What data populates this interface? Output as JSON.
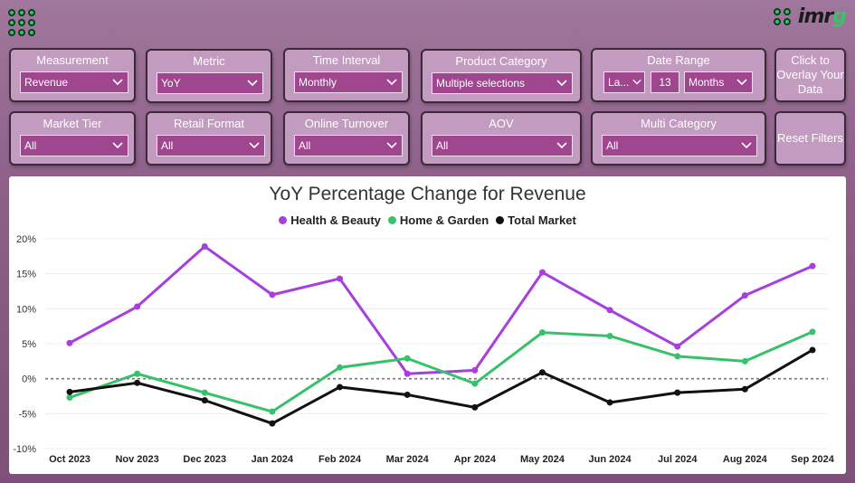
{
  "filters_row1": {
    "measurement": {
      "title": "Measurement",
      "value": "Revenue"
    },
    "metric": {
      "title": "Metric",
      "value": "YoY"
    },
    "time_interval": {
      "title": "Time Interval",
      "value": "Monthly"
    },
    "product_category": {
      "title": "Product Category",
      "value": "Multiple selections"
    },
    "date_range": {
      "title": "Date Range",
      "mode": "La...",
      "count": "13",
      "unit": "Months"
    },
    "overlay_button": {
      "label": "Click to Overlay Your Data"
    }
  },
  "filters_row2": {
    "market_tier": {
      "title": "Market Tier",
      "value": "All"
    },
    "retail_format": {
      "title": "Retail Format",
      "value": "All"
    },
    "online_turnover": {
      "title": "Online Turnover",
      "value": "All"
    },
    "aov": {
      "title": "AOV",
      "value": "All"
    },
    "multi_category": {
      "title": "Multi Category",
      "value": "All"
    },
    "reset_button": {
      "label": "Reset Filters"
    }
  },
  "colors": {
    "accent": "#a0468f",
    "health_beauty": "#a63fdd",
    "home_garden": "#36c26a",
    "total_market": "#111111"
  },
  "chart_data": {
    "type": "line",
    "title": "YoY Percentage Change for Revenue",
    "x": [
      "Oct 2023",
      "Nov 2023",
      "Dec 2023",
      "Jan 2024",
      "Feb 2024",
      "Mar 2024",
      "Apr 2024",
      "May 2024",
      "Jun 2024",
      "Jul 2024",
      "Aug 2024",
      "Sep 2024"
    ],
    "series": [
      {
        "name": "Health & Beauty",
        "color": "#a63fdd",
        "values": [
          5.1,
          10.3,
          18.9,
          12.0,
          14.3,
          0.7,
          1.2,
          15.2,
          9.8,
          4.6,
          11.9,
          16.1
        ]
      },
      {
        "name": "Home & Garden",
        "color": "#36c26a",
        "values": [
          -2.7,
          0.7,
          -2.0,
          -4.7,
          1.6,
          2.9,
          -0.7,
          6.6,
          6.1,
          3.2,
          2.5,
          6.7
        ]
      },
      {
        "name": "Total Market",
        "color": "#111111",
        "values": [
          -1.9,
          -0.6,
          -3.1,
          -6.4,
          -1.2,
          -2.3,
          -4.1,
          0.9,
          -3.4,
          -2.0,
          -1.5,
          4.1
        ]
      }
    ],
    "yticks": [
      "20%",
      "15%",
      "10%",
      "5%",
      "0%",
      "-5%",
      "-10%"
    ],
    "ylim": [
      -10,
      20
    ],
    "zero_line": "dotted"
  }
}
